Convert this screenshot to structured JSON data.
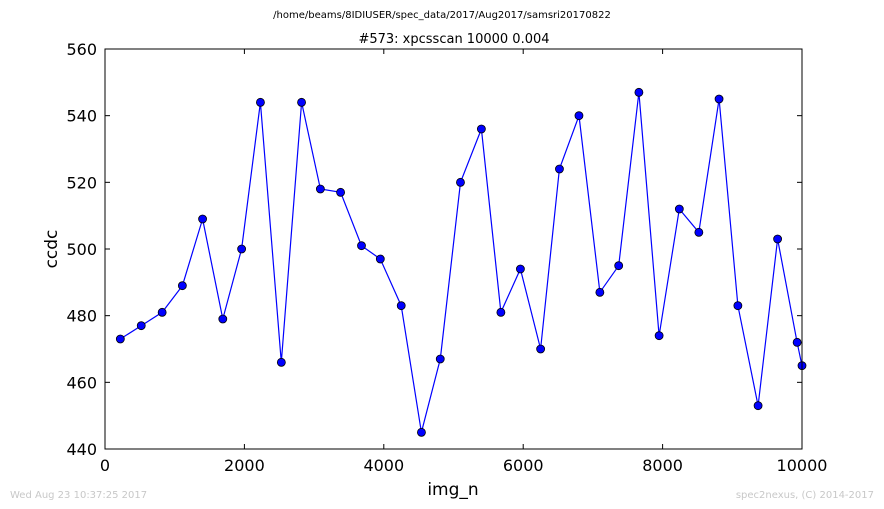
{
  "chart_data": {
    "type": "line",
    "suptitle": "/home/beams/8IDIUSER/spec_data/2017/Aug2017/samsri20170822",
    "title": "#573: xpcsscan 10000 0.004",
    "xlabel": "img_n",
    "ylabel": "ccdc",
    "xlim": [
      0,
      10000
    ],
    "ylim": [
      440,
      560
    ],
    "xticks": [
      0,
      2000,
      4000,
      6000,
      8000,
      10000
    ],
    "yticks": [
      440,
      460,
      480,
      500,
      520,
      540,
      560
    ],
    "grid": false,
    "line_color": "#0000ff",
    "marker": "circle",
    "x": [
      220,
      520,
      820,
      1110,
      1400,
      1690,
      1960,
      2230,
      2530,
      2820,
      3090,
      3380,
      3680,
      3950,
      4250,
      4540,
      4810,
      5100,
      5400,
      5680,
      5960,
      6250,
      6520,
      6800,
      7100,
      7370,
      7660,
      7950,
      8240,
      8520,
      8810,
      9080,
      9370,
      9650,
      9930,
      10000
    ],
    "y": [
      473,
      477,
      481,
      489,
      509,
      479,
      500,
      544,
      466,
      544,
      518,
      517,
      501,
      497,
      483,
      445,
      467,
      520,
      536,
      481,
      494,
      470,
      524,
      540,
      487,
      495,
      547,
      474,
      512,
      505,
      545,
      483,
      453,
      503,
      472,
      465
    ]
  },
  "footer": {
    "left": "Wed Aug 23 10:37:25 2017",
    "right": "spec2nexus, (C) 2014-2017"
  }
}
